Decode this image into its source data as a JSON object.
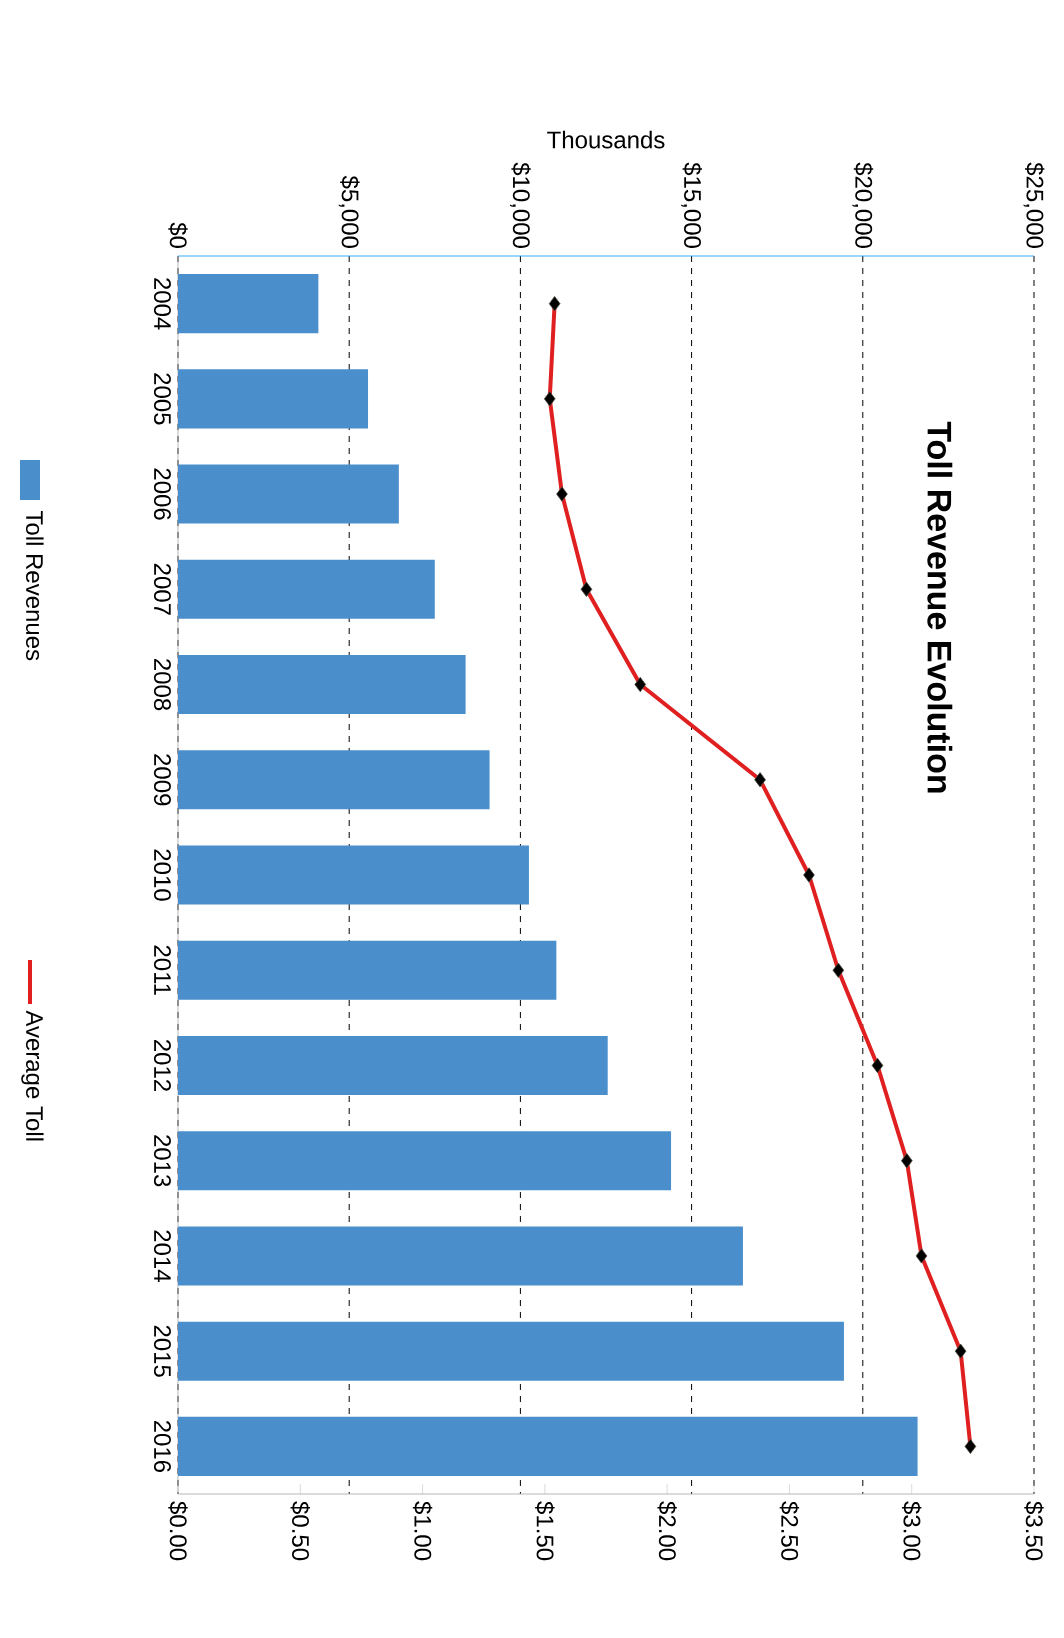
{
  "chart_data": {
    "type": "bar",
    "orientation": "horizontal",
    "title": "Toll Revenue Evolution",
    "xlabel": "Thousands",
    "categories": [
      "2004",
      "2005",
      "2006",
      "2007",
      "2008",
      "2009",
      "2010",
      "2011",
      "2012",
      "2013",
      "2014",
      "2015",
      "2016"
    ],
    "series": [
      {
        "name": "Toll Revenues",
        "color": "#4a8fcc",
        "values": [
          4100,
          5550,
          6450,
          7500,
          8400,
          9100,
          10250,
          11050,
          12550,
          14400,
          16500,
          19450,
          21600
        ]
      },
      {
        "name": "Average Toll",
        "type": "line",
        "axis": "x2",
        "color": "#e02020",
        "marker": "diamond",
        "line_style": "solid",
        "values": [
          1.54,
          1.52,
          1.57,
          1.67,
          1.89,
          2.38,
          2.58,
          2.7,
          2.86,
          2.98,
          3.04,
          3.2,
          3.24
        ]
      }
    ],
    "xlim": [
      0,
      25000
    ],
    "xticks": [
      {
        "value": 0,
        "label": "$0"
      },
      {
        "value": 5000,
        "label": "$5,000"
      },
      {
        "value": 10000,
        "label": "$10,000"
      },
      {
        "value": 15000,
        "label": "$15,000"
      },
      {
        "value": 20000,
        "label": "$20,000"
      },
      {
        "value": 25000,
        "label": "$25,000"
      }
    ],
    "x2lim": [
      0,
      3.5
    ],
    "x2ticks": [
      {
        "value": 0,
        "label": "$0.00"
      },
      {
        "value": 0.5,
        "label": "$0.50"
      },
      {
        "value": 1,
        "label": "$1.00"
      },
      {
        "value": 1.5,
        "label": "$1.50"
      },
      {
        "value": 2,
        "label": "$2.00"
      },
      {
        "value": 2.5,
        "label": "$2.50"
      },
      {
        "value": 3,
        "label": "$3.00"
      },
      {
        "value": 3.5,
        "label": "$3.50"
      }
    ],
    "grid": "x",
    "legend": "left"
  }
}
